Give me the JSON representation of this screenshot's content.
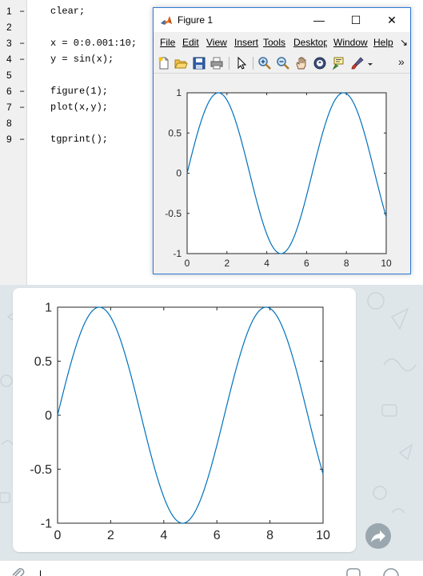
{
  "editor": {
    "lines": [
      {
        "num": "1",
        "marker": "–",
        "code": "clear;"
      },
      {
        "num": "2",
        "marker": "",
        "code": ""
      },
      {
        "num": "3",
        "marker": "–",
        "code": "x = 0:0.001:10;"
      },
      {
        "num": "4",
        "marker": "–",
        "code": "y = sin(x);"
      },
      {
        "num": "5",
        "marker": "",
        "code": ""
      },
      {
        "num": "6",
        "marker": "–",
        "code": "figure(1);"
      },
      {
        "num": "7",
        "marker": "–",
        "code": "plot(x,y);"
      },
      {
        "num": "8",
        "marker": "",
        "code": ""
      },
      {
        "num": "9",
        "marker": "–",
        "code": "tgprint();"
      }
    ]
  },
  "figure_window": {
    "title": "Figure 1",
    "window_buttons": {
      "minimize": "—",
      "maximize": "☐",
      "close": "✕"
    },
    "menu": [
      "File",
      "Edit",
      "View",
      "Insert",
      "Tools",
      "Desktop",
      "Window",
      "Help"
    ],
    "menu_overflow": "↘",
    "toolbar_overflow": "»",
    "toolbar_icons": [
      "new-figure-icon",
      "open-file-icon",
      "save-icon",
      "print-icon",
      "pointer-icon",
      "zoom-in-icon",
      "zoom-out-icon",
      "pan-hand-icon",
      "rotate-3d-icon",
      "data-cursor-icon",
      "brush-icon",
      "dropdown-arrow-icon"
    ],
    "brand_color": "#e36a1e"
  },
  "chart_data": [
    {
      "type": "line",
      "function": "sin(x)",
      "x_range": [
        0,
        10
      ],
      "ylim": [
        -1,
        1
      ],
      "xticks": [
        "0",
        "2",
        "4",
        "6",
        "8",
        "10"
      ],
      "yticks": [
        "1",
        "0.5",
        "0",
        "-0.5",
        "-1"
      ],
      "series_color": "#0072bd",
      "grid": false
    },
    {
      "type": "line",
      "function": "sin(x)",
      "x_range": [
        0,
        10
      ],
      "ylim": [
        -1,
        1
      ],
      "xticks": [
        "0",
        "2",
        "4",
        "6",
        "8",
        "10"
      ],
      "yticks": [
        "1",
        "0.5",
        "0",
        "-0.5",
        "-1"
      ],
      "series_color": "#0072bd",
      "grid": false
    }
  ],
  "chat": {
    "background_color": "#dfe6ea",
    "forward_icon": "forward-share-icon",
    "attach_icon": "paperclip-icon",
    "sticker_icon": "sticker-icon",
    "emoji_icon": "emoji-icon"
  }
}
